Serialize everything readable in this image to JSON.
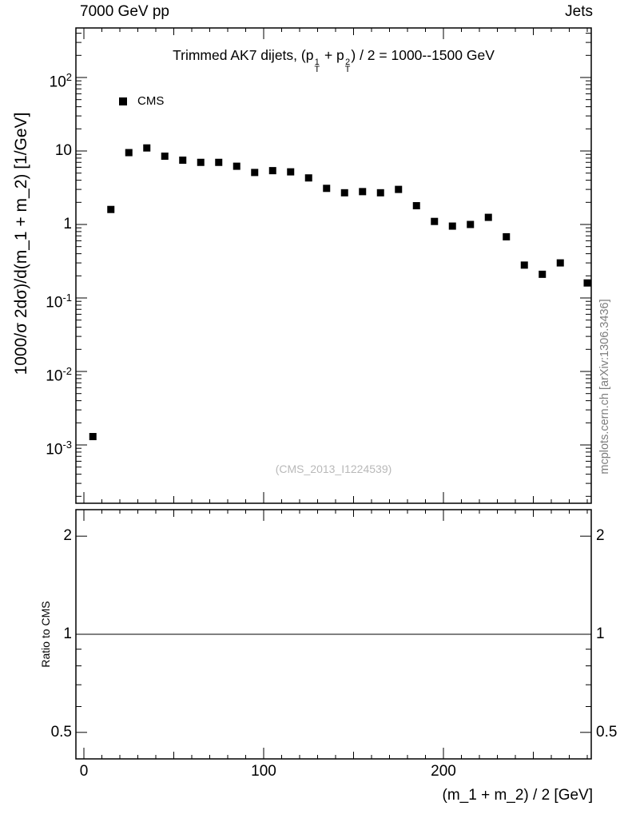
{
  "header": {
    "left": "7000 GeV pp",
    "right": "Jets"
  },
  "main_panel": {
    "title": [
      {
        "t": "Trimmed AK7 dijets, (p"
      },
      {
        "sup": "1",
        "sub": "T"
      },
      {
        "t": " + p"
      },
      {
        "sup": "2",
        "sub": "T"
      },
      {
        "t": ") / 2 = 1000--1500 GeV"
      }
    ],
    "legend": {
      "label": "CMS",
      "marker": "filled-square",
      "color": "#000000"
    },
    "watermark": "(CMS_2013_I1224539)",
    "ylabel": "1000/σ  2dσ)/d(m_1 + m_2) [1/GeV]",
    "ytick_labels": [
      {
        "base": "10",
        "exp": "2",
        "value": 100
      },
      {
        "base": "10",
        "exp": "",
        "value": 10
      },
      {
        "base": "1",
        "exp": "",
        "value": 1
      },
      {
        "base": "10",
        "exp": "-1",
        "value": 0.1
      },
      {
        "base": "10",
        "exp": "-2",
        "value": 0.01
      },
      {
        "base": "10",
        "exp": "-3",
        "value": 0.001
      }
    ]
  },
  "ratio_panel": {
    "ylabel": "Ratio to CMS",
    "ytick_labels": [
      {
        "label": "2",
        "value": 2
      },
      {
        "label": "1",
        "value": 1
      },
      {
        "label": "0.5",
        "value": 0.5
      }
    ],
    "minor_ticks": [
      0.6,
      0.7,
      0.8,
      0.9
    ],
    "reference_line": 1
  },
  "xaxis": {
    "label": "(m_1 + m_2) / 2 [GeV]",
    "tick_labels": [
      {
        "label": "0",
        "value": 0
      },
      {
        "label": "100",
        "value": 100
      },
      {
        "label": "200",
        "value": 200
      }
    ],
    "minor_step": 10,
    "max": 280
  },
  "side_note": "mcplots.cern.ch [arXiv:1306.3436]",
  "chart_data": {
    "type": "scatter",
    "title": "Trimmed AK7 dijets, (pT1 + pT2) / 2 = 1000--1500 GeV",
    "xlabel": "(m_1 + m_2) / 2 [GeV]",
    "ylabel": "1000/σ  2dσ)/d(m_1 + m_2) [1/GeV]",
    "yscale": "log",
    "xlim": [
      -4,
      282
    ],
    "ylim": [
      0.00015,
      470
    ],
    "legend_position": "top-left-inside",
    "grid": false,
    "series": [
      {
        "name": "CMS",
        "marker": "filled-square",
        "color": "#000000",
        "x": [
          5,
          15,
          25,
          35,
          45,
          55,
          65,
          75,
          85,
          95,
          105,
          115,
          125,
          135,
          145,
          155,
          165,
          175,
          185,
          195,
          205,
          215,
          225,
          235,
          245,
          255,
          265,
          280
        ],
        "y": [
          0.0013,
          1.6,
          9.5,
          11.0,
          8.5,
          7.5,
          7.0,
          7.0,
          6.2,
          5.1,
          5.4,
          5.2,
          4.3,
          3.1,
          2.7,
          2.8,
          2.7,
          3.0,
          1.8,
          1.1,
          0.95,
          1.0,
          1.25,
          0.68,
          0.28,
          0.21,
          0.3,
          0.16
        ]
      }
    ],
    "ratio": {
      "ylabel": "Ratio to CMS",
      "yticks": [
        0.5,
        1,
        2
      ],
      "ylim": [
        0.42,
        2.4
      ],
      "reference_line": 1
    }
  }
}
